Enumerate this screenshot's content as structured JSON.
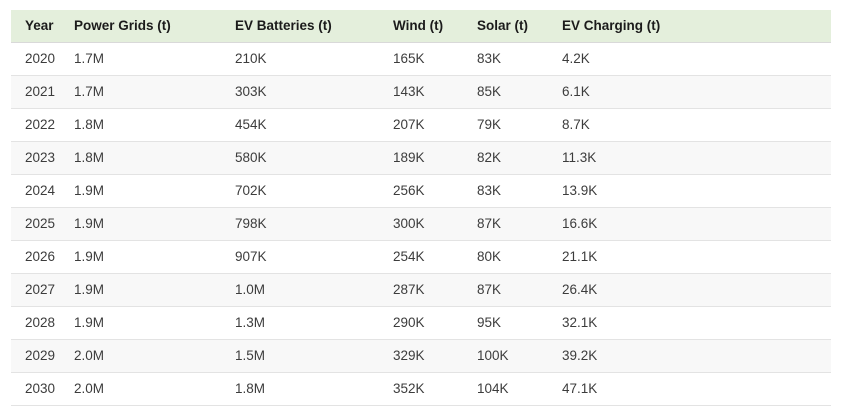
{
  "chart_data": {
    "type": "table",
    "columns": [
      "Year",
      "Power Grids (t)",
      "EV Batteries (t)",
      "Wind (t)",
      "Solar (t)",
      "EV Charging (t)"
    ],
    "rows": [
      [
        "2020",
        "1.7M",
        "210K",
        "165K",
        "83K",
        "4.2K"
      ],
      [
        "2021",
        "1.7M",
        "303K",
        "143K",
        "85K",
        "6.1K"
      ],
      [
        "2022",
        "1.8M",
        "454K",
        "207K",
        "79K",
        "8.7K"
      ],
      [
        "2023",
        "1.8M",
        "580K",
        "189K",
        "82K",
        "11.3K"
      ],
      [
        "2024",
        "1.9M",
        "702K",
        "256K",
        "83K",
        "13.9K"
      ],
      [
        "2025",
        "1.9M",
        "798K",
        "300K",
        "87K",
        "16.6K"
      ],
      [
        "2026",
        "1.9M",
        "907K",
        "254K",
        "80K",
        "21.1K"
      ],
      [
        "2027",
        "1.9M",
        "1.0M",
        "287K",
        "87K",
        "26.4K"
      ],
      [
        "2028",
        "1.9M",
        "1.3M",
        "290K",
        "95K",
        "32.1K"
      ],
      [
        "2029",
        "2.0M",
        "1.5M",
        "329K",
        "100K",
        "39.2K"
      ],
      [
        "2030",
        "2.0M",
        "1.8M",
        "352K",
        "104K",
        "47.1K"
      ]
    ]
  },
  "colors": {
    "header_bg": "#e4efdc",
    "stripe_bg": "#f8f8f8",
    "row_border": "#e3e3e3",
    "header_border": "#d9d9d9",
    "header_text": "#1b1b1b",
    "body_text": "#3c3c3c"
  }
}
